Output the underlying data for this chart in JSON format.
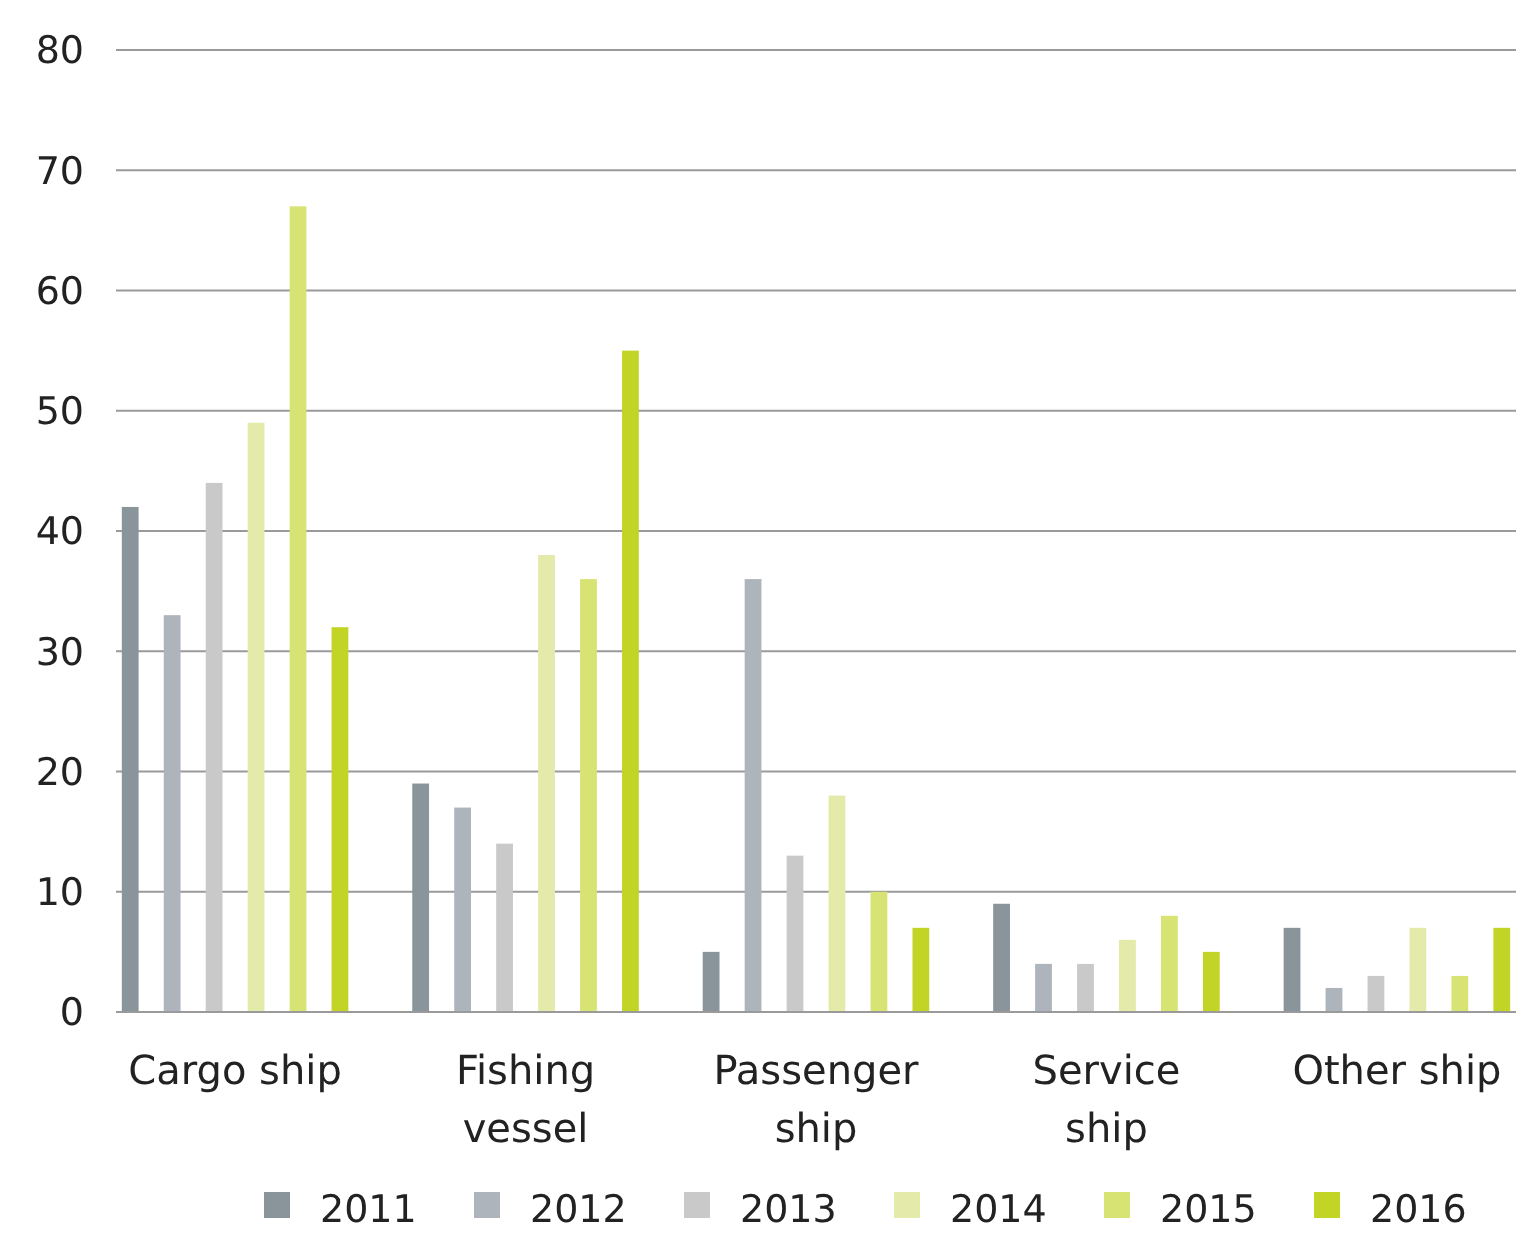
{
  "chart_data": {
    "type": "bar",
    "categories": [
      "Cargo ship",
      "Fishing vessel",
      "Passenger ship",
      "Service ship",
      "Other ship"
    ],
    "series": [
      {
        "name": "2011",
        "color": "#8a949b",
        "values": [
          42,
          19,
          5,
          9,
          7
        ]
      },
      {
        "name": "2012",
        "color": "#adb4bc",
        "values": [
          33,
          17,
          36,
          4,
          2
        ]
      },
      {
        "name": "2013",
        "color": "#c9c9c9",
        "values": [
          44,
          14,
          13,
          4,
          3
        ]
      },
      {
        "name": "2014",
        "color": "#e4eaaa",
        "values": [
          49,
          38,
          18,
          6,
          7
        ]
      },
      {
        "name": "2015",
        "color": "#d7e373",
        "values": [
          67,
          36,
          10,
          8,
          3
        ]
      },
      {
        "name": "2016",
        "color": "#c2d426",
        "values": [
          32,
          55,
          7,
          5,
          7
        ]
      }
    ],
    "ylim": [
      0,
      80
    ],
    "yticks": [
      0,
      10,
      20,
      30,
      40,
      50,
      60,
      70,
      80
    ],
    "grid": "y",
    "legend": "bottom"
  }
}
